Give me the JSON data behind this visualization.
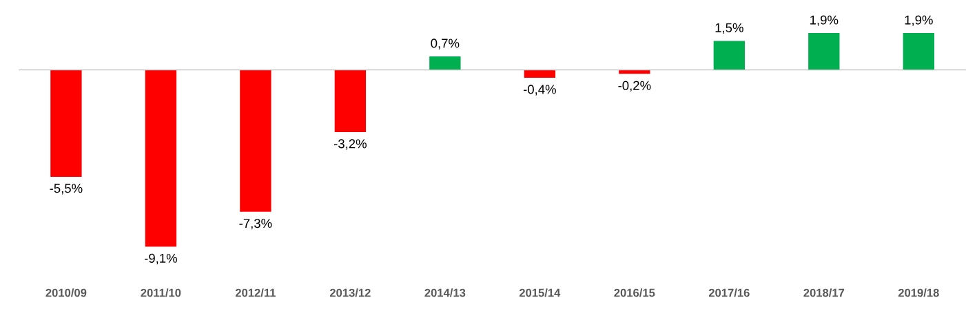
{
  "chart_data": {
    "type": "bar",
    "categories": [
      "2010/09",
      "2011/10",
      "2012/11",
      "2013/12",
      "2014/13",
      "2015/14",
      "2016/15",
      "2017/16",
      "2018/17",
      "2019/18"
    ],
    "values": [
      -5.5,
      -9.1,
      -7.3,
      -3.2,
      0.7,
      -0.4,
      -0.2,
      1.5,
      1.9,
      1.9
    ],
    "colors": [
      "#ff0000",
      "#ff0000",
      "#ff0000",
      "#ff0000",
      "#00b050",
      "#ff0000",
      "#ff0000",
      "#00b050",
      "#00b050",
      "#00b050"
    ],
    "value_labels": [
      "-5,5%",
      "-9,1%",
      "-7,3%",
      "-3,2%",
      "0,7%",
      "-0,4%",
      "-0,2%",
      "1,5%",
      "1,9%",
      "1,9%"
    ]
  }
}
